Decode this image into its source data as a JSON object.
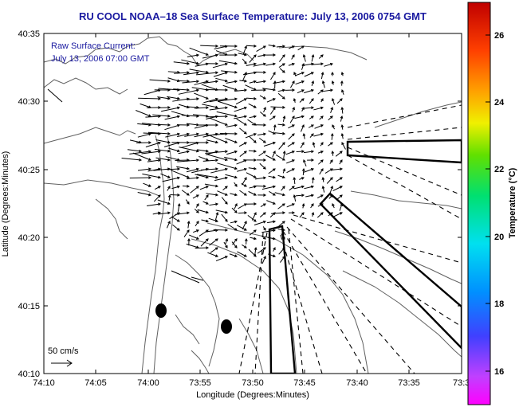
{
  "title": "RU COOL  NOAA–18  Sea Surface Temperature:  July 13, 2006 0754 GMT",
  "inset": {
    "line1": "Raw Surface Current:",
    "line2": "July 13, 2006 07:00 GMT"
  },
  "scale_label": "50 cm/s",
  "x_axis": {
    "label": "Longitude (Degrees:Minutes)",
    "ticks": [
      "74:10",
      "74:05",
      "74:00",
      "73:55",
      "73:50",
      "73:45",
      "73:40",
      "73:35",
      "73:3"
    ]
  },
  "y_axis": {
    "label": "Latitude (Degrees:Minutes)",
    "ticks": [
      "40:35",
      "40:30",
      "40:25",
      "40:20",
      "40:15",
      "40:10"
    ]
  },
  "colorbar": {
    "label": "Temperature (°C)",
    "ticks": [
      "26",
      "24",
      "22",
      "20",
      "18",
      "16"
    ]
  },
  "colors": {
    "title": "#1a1aa0",
    "inset": "#1a1aa0",
    "land_contour": "#606060",
    "vectors": "#000000"
  }
}
